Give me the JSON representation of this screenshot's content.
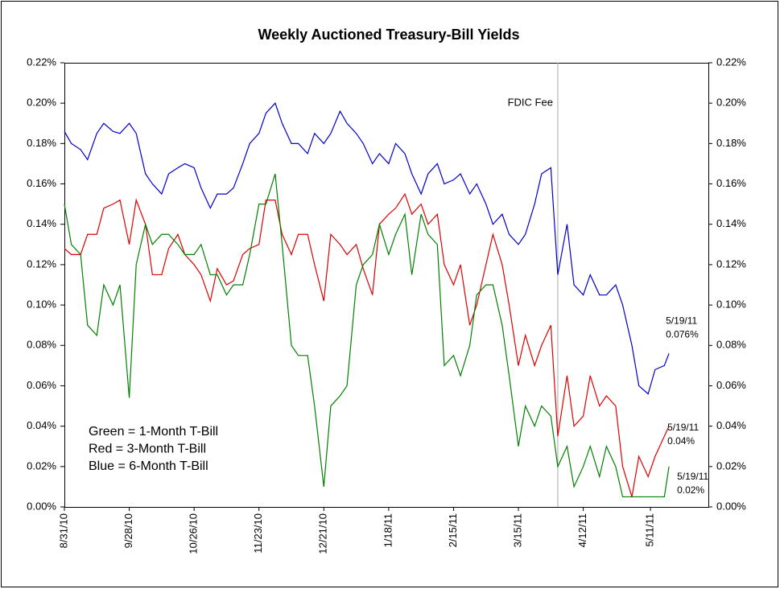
{
  "chart_data": {
    "type": "line",
    "title": "Weekly Auctioned Treasury-Bill Yields",
    "x": [
      "8/31/10",
      "9/3/10",
      "9/7/10",
      "9/10/10",
      "9/14/10",
      "9/17/10",
      "9/21/10",
      "9/24/10",
      "9/28/10",
      "10/1/10",
      "10/5/10",
      "10/8/10",
      "10/12/10",
      "10/15/10",
      "10/19/10",
      "10/22/10",
      "10/26/10",
      "10/29/10",
      "11/2/10",
      "11/5/10",
      "11/9/10",
      "11/12/10",
      "11/16/10",
      "11/19/10",
      "11/23/10",
      "11/26/10",
      "11/30/10",
      "12/3/10",
      "12/7/10",
      "12/10/10",
      "12/14/10",
      "12/17/10",
      "12/21/10",
      "12/24/10",
      "12/28/10",
      "12/31/10",
      "1/4/11",
      "1/7/11",
      "1/11/11",
      "1/14/11",
      "1/18/11",
      "1/21/11",
      "1/25/11",
      "1/28/11",
      "2/1/11",
      "2/4/11",
      "2/8/11",
      "2/11/11",
      "2/15/11",
      "2/18/11",
      "2/22/11",
      "2/25/11",
      "3/1/11",
      "3/4/11",
      "3/8/11",
      "3/11/11",
      "3/15/11",
      "3/18/11",
      "3/22/11",
      "3/25/11",
      "3/29/11",
      "4/1/11",
      "4/5/11",
      "4/8/11",
      "4/12/11",
      "4/15/11",
      "4/19/11",
      "4/22/11",
      "4/26/11",
      "4/29/11",
      "5/3/11",
      "5/6/11",
      "5/10/11",
      "5/13/11",
      "5/17/11",
      "5/19/11"
    ],
    "series": [
      {
        "name": "Blue = 6-Month T-Bill",
        "color": "#0000cc",
        "end_labels": [
          "5/19/11",
          "0.076%"
        ],
        "values": [
          0.186,
          0.18,
          0.177,
          0.172,
          0.185,
          0.19,
          0.186,
          0.185,
          0.19,
          0.185,
          0.165,
          0.16,
          0.155,
          0.165,
          0.168,
          0.17,
          0.168,
          0.158,
          0.148,
          0.155,
          0.155,
          0.158,
          0.17,
          0.18,
          0.185,
          0.195,
          0.2,
          0.19,
          0.18,
          0.18,
          0.175,
          0.185,
          0.18,
          0.185,
          0.196,
          0.19,
          0.185,
          0.18,
          0.17,
          0.175,
          0.17,
          0.18,
          0.175,
          0.165,
          0.155,
          0.165,
          0.17,
          0.16,
          0.162,
          0.165,
          0.155,
          0.16,
          0.15,
          0.14,
          0.145,
          0.135,
          0.13,
          0.135,
          0.15,
          0.165,
          0.168,
          0.115,
          0.14,
          0.11,
          0.105,
          0.115,
          0.105,
          0.105,
          0.11,
          0.1,
          0.08,
          0.06,
          0.056,
          0.068,
          0.07,
          0.076
        ]
      },
      {
        "name": "Red = 3-Month T-Bill",
        "color": "#dd0000",
        "end_labels": [
          "5/19/11",
          "0.04%"
        ],
        "values": [
          0.128,
          0.125,
          0.125,
          0.135,
          0.135,
          0.148,
          0.15,
          0.152,
          0.13,
          0.152,
          0.14,
          0.115,
          0.115,
          0.128,
          0.135,
          0.125,
          0.12,
          0.115,
          0.102,
          0.118,
          0.11,
          0.112,
          0.125,
          0.128,
          0.13,
          0.152,
          0.152,
          0.135,
          0.125,
          0.135,
          0.135,
          0.12,
          0.102,
          0.135,
          0.13,
          0.125,
          0.13,
          0.118,
          0.105,
          0.14,
          0.145,
          0.148,
          0.155,
          0.145,
          0.15,
          0.14,
          0.145,
          0.12,
          0.11,
          0.12,
          0.09,
          0.1,
          0.12,
          0.135,
          0.12,
          0.1,
          0.07,
          0.085,
          0.07,
          0.08,
          0.09,
          0.035,
          0.065,
          0.04,
          0.045,
          0.065,
          0.05,
          0.055,
          0.05,
          0.02,
          0.005,
          0.025,
          0.015,
          0.025,
          0.035,
          0.04
        ]
      },
      {
        "name": "Green = 1-Month T-Bill",
        "color": "#008000",
        "end_labels": [
          "5/19/11",
          "0.02%"
        ],
        "values": [
          0.15,
          0.13,
          0.125,
          0.09,
          0.085,
          0.11,
          0.1,
          0.11,
          0.054,
          0.12,
          0.14,
          0.13,
          0.135,
          0.135,
          0.13,
          0.125,
          0.125,
          0.13,
          0.115,
          0.115,
          0.105,
          0.11,
          0.11,
          0.125,
          0.15,
          0.15,
          0.165,
          0.13,
          0.08,
          0.075,
          0.075,
          0.05,
          0.01,
          0.05,
          0.055,
          0.06,
          0.11,
          0.12,
          0.125,
          0.14,
          0.125,
          0.135,
          0.145,
          0.115,
          0.145,
          0.135,
          0.13,
          0.07,
          0.075,
          0.065,
          0.08,
          0.105,
          0.11,
          0.11,
          0.09,
          0.065,
          0.03,
          0.05,
          0.04,
          0.05,
          0.045,
          0.02,
          0.03,
          0.01,
          0.02,
          0.03,
          0.015,
          0.03,
          0.02,
          0.005,
          0.005,
          0.005,
          0.005,
          0.005,
          0.005,
          0.02
        ]
      }
    ],
    "legend_order": [
      2,
      1,
      0
    ],
    "legend": "lower left",
    "annotations": [
      {
        "x": "4/1/11",
        "text": "FDIC Fee"
      }
    ],
    "xlim": [
      "8/31/10",
      "6/5/11"
    ],
    "xticks": [
      "8/31/10",
      "9/28/10",
      "10/26/10",
      "11/23/10",
      "12/21/10",
      "1/18/11",
      "2/15/11",
      "3/15/11",
      "4/12/11",
      "5/11/11"
    ],
    "ylim": [
      0,
      0.22
    ],
    "yticks": [
      {
        "value": 0,
        "label": "0.00%"
      },
      {
        "value": 0.02,
        "label": "0.02%"
      },
      {
        "value": 0.04,
        "label": "0.04%"
      },
      {
        "value": 0.06,
        "label": "0.06%"
      },
      {
        "value": 0.08,
        "label": "0.08%"
      },
      {
        "value": 0.1,
        "label": "0.10%"
      },
      {
        "value": 0.12,
        "label": "0.12%"
      },
      {
        "value": 0.14,
        "label": "0.14%"
      },
      {
        "value": 0.16,
        "label": "0.16%"
      },
      {
        "value": 0.18,
        "label": "0.18%"
      },
      {
        "value": 0.2,
        "label": "0.20%"
      },
      {
        "value": 0.22,
        "label": "0.22%"
      }
    ],
    "y2lim": [
      0,
      0.22
    ],
    "y2ticks": [
      {
        "value": 0,
        "label": "0.00%"
      },
      {
        "value": 0.02,
        "label": "0.02%"
      },
      {
        "value": 0.04,
        "label": "0.04%"
      },
      {
        "value": 0.06,
        "label": "0.06%"
      },
      {
        "value": 0.08,
        "label": "0.08%"
      },
      {
        "value": 0.1,
        "label": "0.10%"
      },
      {
        "value": 0.12,
        "label": "0.12%"
      },
      {
        "value": 0.14,
        "label": "0.14%"
      },
      {
        "value": 0.16,
        "label": "0.16%"
      },
      {
        "value": 0.18,
        "label": "0.18%"
      },
      {
        "value": 0.2,
        "label": "0.20%"
      },
      {
        "value": 0.22,
        "label": "0.22%"
      }
    ],
    "grid": false
  }
}
